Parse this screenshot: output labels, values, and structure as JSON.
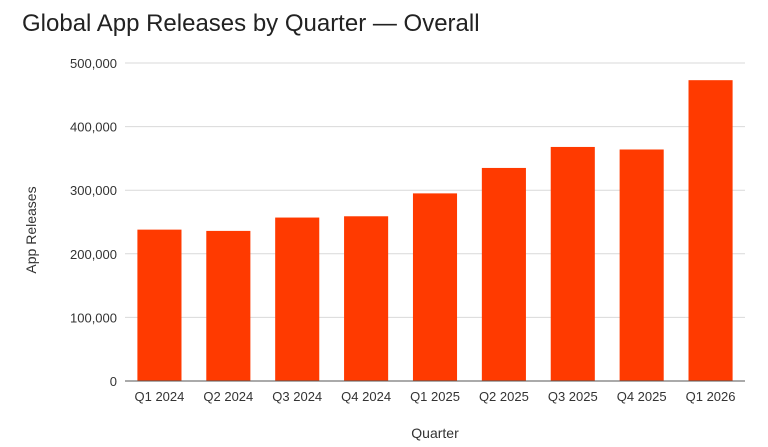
{
  "chart_data": {
    "type": "bar",
    "title": "Global App Releases by Quarter — Overall",
    "xlabel": "Quarter",
    "ylabel": "App Releases",
    "categories": [
      "Q1 2024",
      "Q2 2024",
      "Q3 2024",
      "Q4 2024",
      "Q1 2025",
      "Q2 2025",
      "Q3 2025",
      "Q4 2025",
      "Q1 2026"
    ],
    "values": [
      238000,
      236000,
      257000,
      259000,
      295000,
      335000,
      368000,
      364000,
      473000
    ],
    "ylim": [
      0,
      500000
    ],
    "yticks": [
      0,
      100000,
      200000,
      300000,
      400000,
      500000
    ],
    "ytick_labels": [
      "0",
      "100,000",
      "200,000",
      "300,000",
      "400,000",
      "500,000"
    ],
    "grid": true,
    "legend": "none",
    "bar_color": "#ff3a00"
  }
}
